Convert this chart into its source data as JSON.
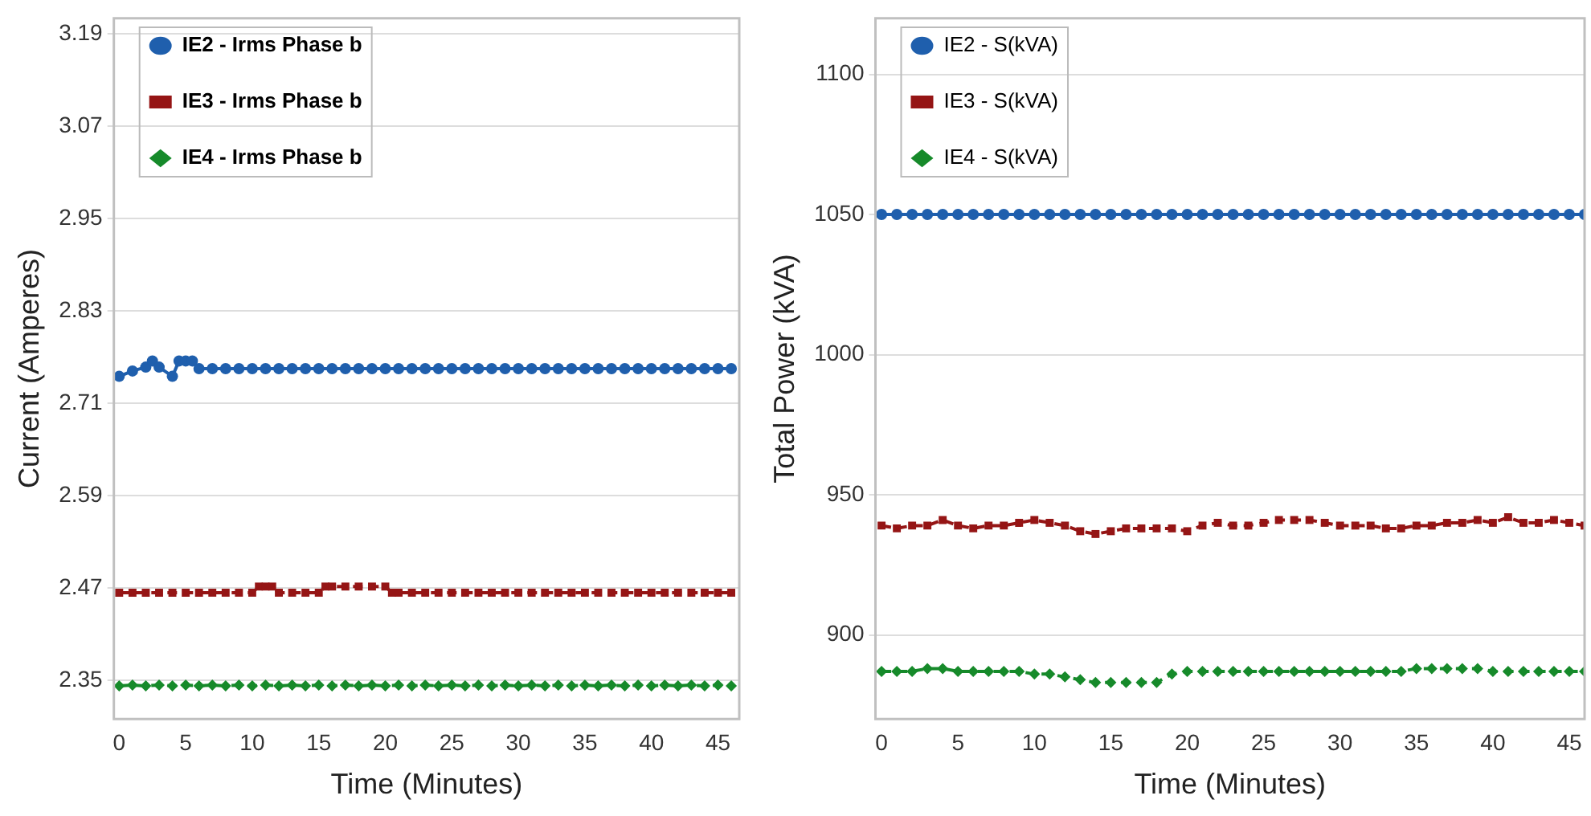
{
  "chart_data": [
    {
      "type": "line",
      "xlabel": "Time (Minutes)",
      "ylabel": "Current (Amperes)",
      "xlim": [
        -0.4,
        46.6
      ],
      "xticks": [
        0,
        5,
        10,
        15,
        20,
        25,
        30,
        35,
        40,
        45
      ],
      "ylim": [
        2.3,
        3.21
      ],
      "yticks": [
        2.35,
        2.47,
        2.59,
        2.71,
        2.83,
        2.95,
        3.07,
        3.19
      ],
      "grid": "y",
      "legend": "top left",
      "series": [
        {
          "name": "IE2 - Irms Phase b",
          "color": "#1f5fad",
          "marker": "circle",
          "line_style": "solid",
          "x": [
            0,
            1,
            2,
            2.5,
            3,
            4,
            4.5,
            5,
            5.5,
            6,
            7,
            8,
            9,
            10,
            11,
            12,
            13,
            14,
            15,
            16,
            17,
            18,
            19,
            20,
            21,
            22,
            23,
            24,
            25,
            26,
            27,
            28,
            29,
            30,
            31,
            32,
            33,
            34,
            35,
            36,
            37,
            38,
            39,
            40,
            41,
            42,
            43,
            44,
            45,
            46
          ],
          "values": [
            2.745,
            2.752,
            2.757,
            2.765,
            2.757,
            2.745,
            2.765,
            2.765,
            2.765,
            2.755,
            2.755,
            2.755,
            2.755,
            2.755,
            2.755,
            2.755,
            2.755,
            2.755,
            2.755,
            2.755,
            2.755,
            2.755,
            2.755,
            2.755,
            2.755,
            2.755,
            2.755,
            2.755,
            2.755,
            2.755,
            2.755,
            2.755,
            2.755,
            2.755,
            2.755,
            2.755,
            2.755,
            2.755,
            2.755,
            2.755,
            2.755,
            2.755,
            2.755,
            2.755,
            2.755,
            2.755,
            2.755,
            2.755,
            2.755,
            2.755
          ]
        },
        {
          "name": "IE3 - Irms Phase b",
          "color": "#951515",
          "marker": "square",
          "line_style": "dashed",
          "x": [
            0,
            1,
            2,
            3,
            4,
            5,
            6,
            7,
            8,
            9,
            10,
            10.5,
            11,
            11.5,
            12,
            13,
            14,
            15,
            15.5,
            16,
            17,
            18,
            19,
            20,
            20.5,
            21,
            22,
            23,
            24,
            25,
            26,
            27,
            28,
            29,
            30,
            31,
            32,
            33,
            34,
            35,
            36,
            37,
            38,
            39,
            40,
            41,
            42,
            43,
            44,
            45,
            46
          ],
          "values": [
            2.464,
            2.464,
            2.464,
            2.464,
            2.464,
            2.464,
            2.464,
            2.464,
            2.464,
            2.464,
            2.464,
            2.472,
            2.472,
            2.472,
            2.464,
            2.464,
            2.464,
            2.464,
            2.472,
            2.472,
            2.472,
            2.472,
            2.472,
            2.472,
            2.464,
            2.464,
            2.464,
            2.464,
            2.464,
            2.464,
            2.464,
            2.464,
            2.464,
            2.464,
            2.464,
            2.464,
            2.464,
            2.464,
            2.464,
            2.464,
            2.464,
            2.464,
            2.464,
            2.464,
            2.464,
            2.464,
            2.464,
            2.464,
            2.464,
            2.464,
            2.464
          ]
        },
        {
          "name": "IE4 - Irms Phase b",
          "color": "#168a2a",
          "marker": "diamond",
          "line_style": "dashed",
          "x": [
            0,
            1,
            2,
            3,
            4,
            5,
            6,
            7,
            8,
            9,
            10,
            11,
            12,
            13,
            14,
            15,
            16,
            17,
            18,
            19,
            20,
            21,
            22,
            23,
            24,
            25,
            26,
            27,
            28,
            29,
            30,
            31,
            32,
            33,
            34,
            35,
            36,
            37,
            38,
            39,
            40,
            41,
            42,
            43,
            44,
            45,
            46
          ],
          "values": [
            2.343,
            2.344,
            2.343,
            2.344,
            2.343,
            2.344,
            2.343,
            2.344,
            2.343,
            2.344,
            2.343,
            2.344,
            2.343,
            2.344,
            2.343,
            2.344,
            2.343,
            2.344,
            2.343,
            2.344,
            2.343,
            2.344,
            2.343,
            2.344,
            2.343,
            2.344,
            2.343,
            2.344,
            2.343,
            2.344,
            2.343,
            2.344,
            2.343,
            2.344,
            2.343,
            2.344,
            2.343,
            2.344,
            2.343,
            2.344,
            2.343,
            2.344,
            2.343,
            2.344,
            2.343,
            2.344,
            2.343
          ]
        }
      ]
    },
    {
      "type": "line",
      "xlabel": "Time (Minutes)",
      "ylabel": "Total Power (kVA)",
      "xlim": [
        -0.4,
        46
      ],
      "xticks": [
        0,
        5,
        10,
        15,
        20,
        25,
        30,
        35,
        40,
        45
      ],
      "ylim": [
        870,
        1120
      ],
      "yticks": [
        900,
        950,
        1000,
        1050,
        1100
      ],
      "grid": "y",
      "legend": "top left",
      "series": [
        {
          "name": "IE2 - S(kVA)",
          "color": "#1f5fad",
          "marker": "circle",
          "line_style": "solid",
          "x": [
            0,
            1,
            2,
            3,
            4,
            5,
            6,
            7,
            8,
            9,
            10,
            11,
            12,
            13,
            14,
            15,
            16,
            17,
            18,
            19,
            20,
            21,
            22,
            23,
            24,
            25,
            26,
            27,
            28,
            29,
            30,
            31,
            32,
            33,
            34,
            35,
            36,
            37,
            38,
            39,
            40,
            41,
            42,
            43,
            44,
            45,
            46
          ],
          "values": [
            1050,
            1050,
            1050,
            1050,
            1050,
            1050,
            1050,
            1050,
            1050,
            1050,
            1050,
            1050,
            1050,
            1050,
            1050,
            1050,
            1050,
            1050,
            1050,
            1050,
            1050,
            1050,
            1050,
            1050,
            1050,
            1050,
            1050,
            1050,
            1050,
            1050,
            1050,
            1050,
            1050,
            1050,
            1050,
            1050,
            1050,
            1050,
            1050,
            1050,
            1050,
            1050,
            1050,
            1050,
            1050,
            1050,
            1050
          ]
        },
        {
          "name": "IE3 - S(kVA)",
          "color": "#951515",
          "marker": "square",
          "line_style": "dashed",
          "x": [
            0,
            1,
            2,
            3,
            4,
            5,
            6,
            7,
            8,
            9,
            10,
            11,
            12,
            13,
            14,
            15,
            16,
            17,
            18,
            19,
            20,
            21,
            22,
            23,
            24,
            25,
            26,
            27,
            28,
            29,
            30,
            31,
            32,
            33,
            34,
            35,
            36,
            37,
            38,
            39,
            40,
            41,
            42,
            43,
            44,
            45,
            46
          ],
          "values": [
            939,
            938,
            939,
            939,
            941,
            939,
            938,
            939,
            939,
            940,
            941,
            940,
            939,
            937,
            936,
            937,
            938,
            938,
            938,
            938,
            937,
            939,
            940,
            939,
            939,
            940,
            941,
            941,
            941,
            940,
            939,
            939,
            939,
            938,
            938,
            939,
            939,
            940,
            940,
            941,
            940,
            942,
            940,
            940,
            941,
            940,
            939
          ]
        },
        {
          "name": "IE4 - S(kVA)",
          "color": "#168a2a",
          "marker": "diamond",
          "line_style": "dashed",
          "x": [
            0,
            1,
            2,
            3,
            4,
            5,
            6,
            7,
            8,
            9,
            10,
            11,
            12,
            13,
            14,
            15,
            16,
            17,
            18,
            19,
            20,
            21,
            22,
            23,
            24,
            25,
            26,
            27,
            28,
            29,
            30,
            31,
            32,
            33,
            34,
            35,
            36,
            37,
            38,
            39,
            40,
            41,
            42,
            43,
            44,
            45,
            46
          ],
          "values": [
            887,
            887,
            887,
            888,
            888,
            887,
            887,
            887,
            887,
            887,
            886,
            886,
            885,
            884,
            883,
            883,
            883,
            883,
            883,
            886,
            887,
            887,
            887,
            887,
            887,
            887,
            887,
            887,
            887,
            887,
            887,
            887,
            887,
            887,
            887,
            888,
            888,
            888,
            888,
            888,
            887,
            887,
            887,
            887,
            887,
            887,
            887
          ]
        }
      ]
    }
  ]
}
